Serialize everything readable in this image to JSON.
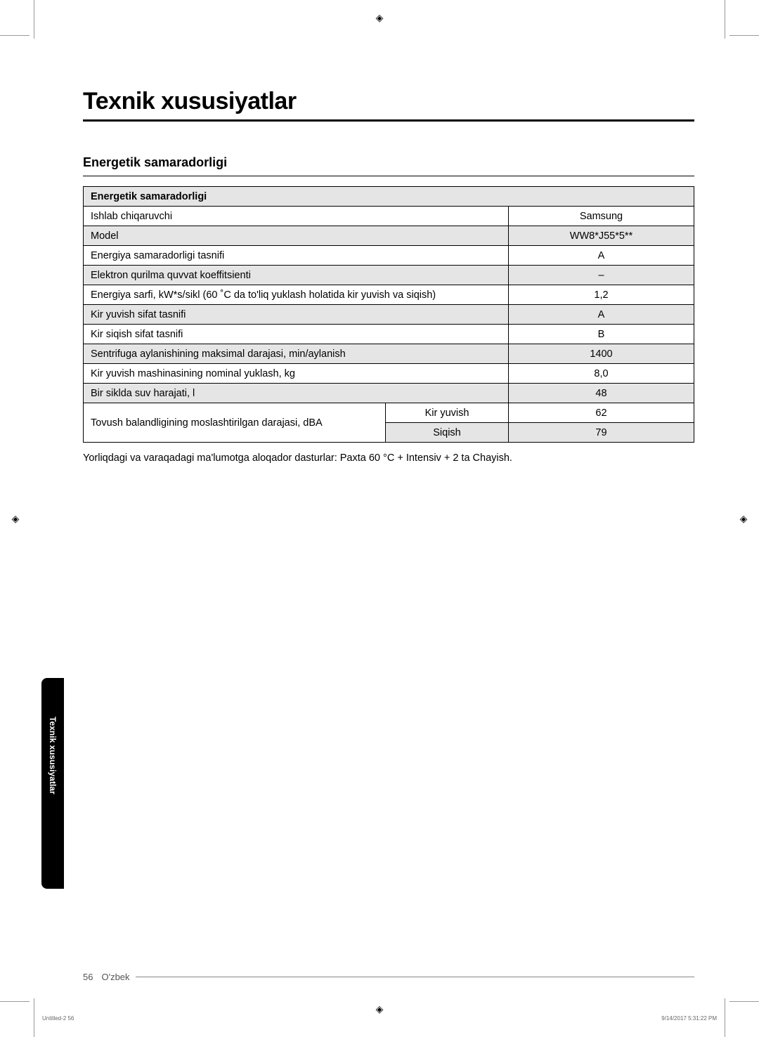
{
  "page": {
    "main_title": "Texnik xususiyatlar",
    "section_title": "Energetik samaradorligi",
    "note": "Yorliqdagi va varaqadagi ma'lumotga aloqador dasturlar: Paxta 60 °C + Intensiv + 2 ta Chayish.",
    "side_tab": "Texnik xususiyatlar",
    "page_number": "56",
    "page_lang": "O'zbek",
    "print_left": "Untitled-2   56",
    "print_right": "9/14/2017   5:31:22 PM"
  },
  "table": {
    "header": "Energetik samaradorligi",
    "rows": [
      {
        "label": "Ishlab chiqaruvchi",
        "value": "Samsung",
        "gray": false
      },
      {
        "label": "Model",
        "value": "WW8*J55*5**",
        "gray": true
      },
      {
        "label": "Energiya samaradorligi tasnifi",
        "value": "A",
        "gray": false
      },
      {
        "label": "Elektron qurilma quvvat koeffitsienti",
        "value": "–",
        "gray": true
      },
      {
        "label": "Energiya sarfi, kW*s/sikl (60 ˚C da to'liq yuklash holatida kir yuvish va siqish)",
        "value": "1,2",
        "gray": false
      },
      {
        "label": "Kir yuvish sifat tasnifi",
        "value": "A",
        "gray": true
      },
      {
        "label": "Kir siqish sifat tasnifi",
        "value": "B",
        "gray": false
      },
      {
        "label": "Sentrifuga aylanishining maksimal darajasi, min/aylanish",
        "value": "1400",
        "gray": true
      },
      {
        "label": "Kir yuvish mashinasining nominal yuklash, kg",
        "value": "8,0",
        "gray": false
      },
      {
        "label": "Bir siklda suv harajati, l",
        "value": "48",
        "gray": true
      }
    ],
    "noise_row": {
      "label": "Tovush balandligining moslashtirilgan darajasi, dBA",
      "sub1_label": "Kir yuvish",
      "sub1_value": "62",
      "sub2_label": "Siqish",
      "sub2_value": "79"
    }
  }
}
